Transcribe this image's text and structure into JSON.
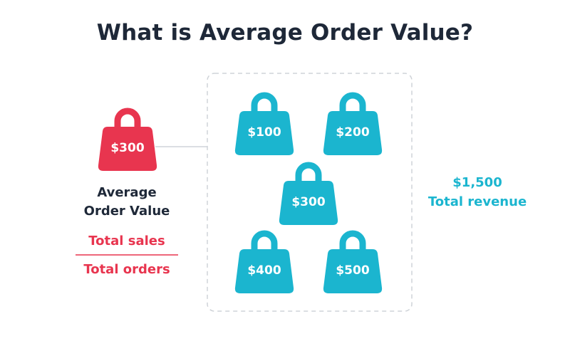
{
  "header": {
    "title": "What is Average Order Value?"
  },
  "average": {
    "bag_label": "$300",
    "label": "Average Order Value",
    "formula": {
      "numerator": "Total sales",
      "denominator": "Total orders"
    }
  },
  "orders": {
    "bags": [
      "$100",
      "$200",
      "$300",
      "$400",
      "$500"
    ]
  },
  "total": {
    "amount": "$1,500",
    "label": "Total revenue"
  }
}
